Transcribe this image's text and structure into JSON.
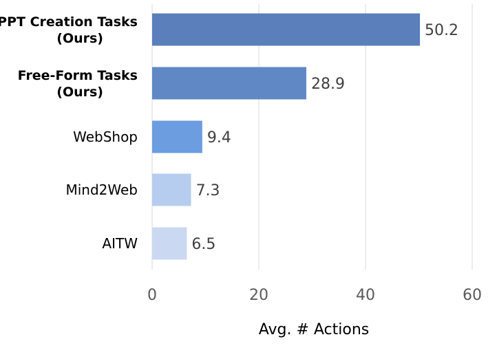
{
  "chart_data": {
    "type": "bar",
    "orientation": "horizontal",
    "categories": [
      [
        "PPT Creation Tasks",
        "(Ours)"
      ],
      [
        "Free-Form Tasks",
        "(Ours)"
      ],
      [
        "WebShop"
      ],
      [
        "Mind2Web"
      ],
      [
        "AITW"
      ]
    ],
    "category_bold": [
      true,
      true,
      false,
      false,
      false
    ],
    "values": [
      50.2,
      28.9,
      9.4,
      7.3,
      6.5
    ],
    "value_labels": [
      "50.2",
      "28.9",
      "9.4",
      "7.3",
      "6.5"
    ],
    "bar_colors": [
      "#5a7fba",
      "#5f88c5",
      "#6b9de0",
      "#b7cdef",
      "#cad9f1"
    ],
    "xlabel": "Avg. # Actions",
    "xlim": [
      0,
      60
    ],
    "xticks": [
      0,
      20,
      40,
      60
    ],
    "grid": "vertical",
    "legend": "none"
  }
}
